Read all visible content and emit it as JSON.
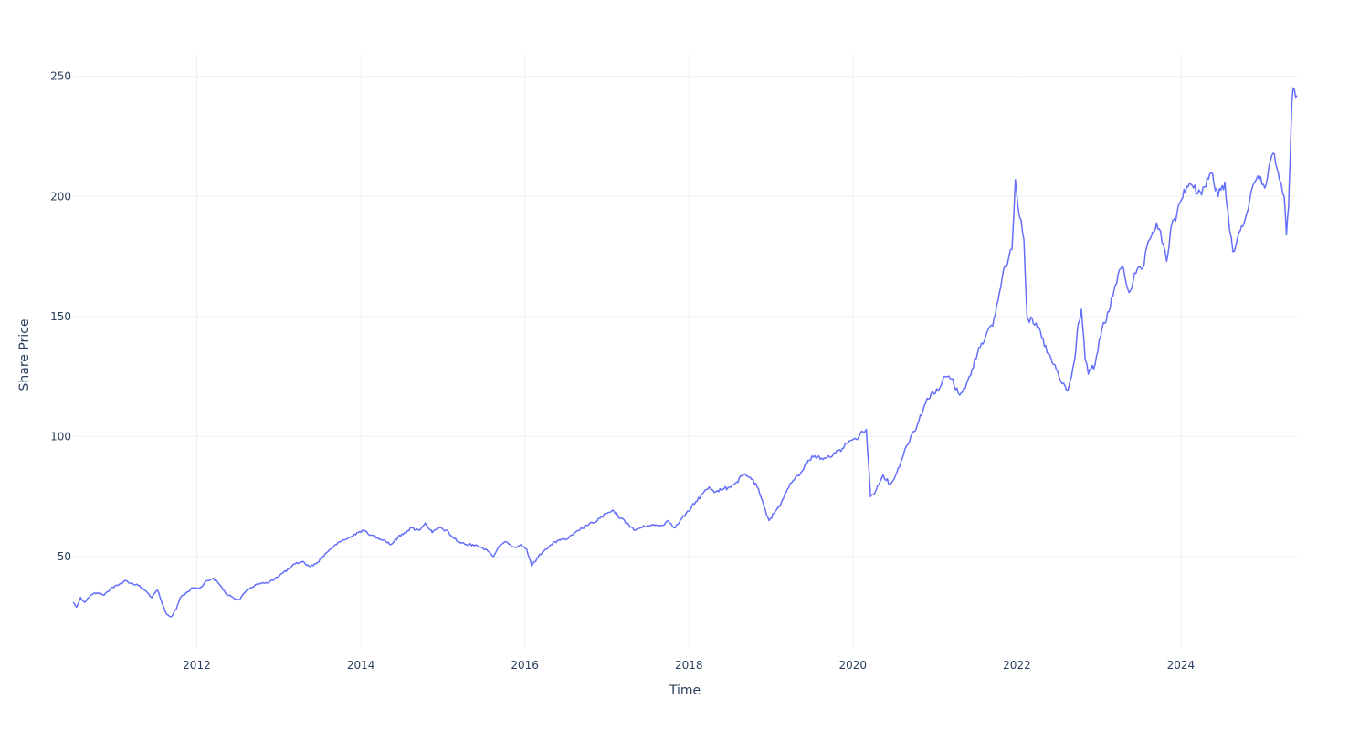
{
  "colors": {
    "series": "#636efa",
    "grid": "#ebf0f8",
    "text": "#2a3f5f",
    "background": "#ffffff"
  },
  "chart_data": {
    "type": "line",
    "title": "",
    "xlabel": "Time",
    "ylabel": "Share Price",
    "grid": true,
    "legend": "none",
    "xlim": [
      "2010-06-29",
      "2025-06-01"
    ],
    "ylim": [
      12,
      259
    ],
    "x_ticks": [
      {
        "value": "2012-01-01",
        "label": "2012"
      },
      {
        "value": "2014-01-01",
        "label": "2014"
      },
      {
        "value": "2016-01-01",
        "label": "2016"
      },
      {
        "value": "2018-01-01",
        "label": "2018"
      },
      {
        "value": "2020-01-01",
        "label": "2020"
      },
      {
        "value": "2022-01-01",
        "label": "2022"
      },
      {
        "value": "2024-01-01",
        "label": "2024"
      }
    ],
    "y_ticks": [
      {
        "value": 50,
        "label": "50"
      },
      {
        "value": 100,
        "label": "100"
      },
      {
        "value": 150,
        "label": "150"
      },
      {
        "value": 200,
        "label": "200"
      },
      {
        "value": 250,
        "label": "250"
      }
    ],
    "series": [
      {
        "x": [
          "2010-06-29",
          "2010-07-15",
          "2010-08-01",
          "2010-08-20",
          "2010-09-15",
          "2010-10-15",
          "2010-11-15",
          "2010-12-15",
          "2011-01-15",
          "2011-02-15",
          "2011-03-15",
          "2011-04-15",
          "2011-05-15",
          "2011-06-15",
          "2011-07-10",
          "2011-08-01",
          "2011-08-20",
          "2011-09-10",
          "2011-10-01",
          "2011-10-20",
          "2011-11-15",
          "2011-12-15",
          "2012-01-15",
          "2012-02-15",
          "2012-03-15",
          "2012-04-15",
          "2012-05-15",
          "2012-06-10",
          "2012-07-10",
          "2012-08-10",
          "2012-09-15",
          "2012-10-15",
          "2012-11-15",
          "2012-12-15",
          "2013-01-15",
          "2013-02-15",
          "2013-03-15",
          "2013-04-15",
          "2013-05-15",
          "2013-06-15",
          "2013-07-15",
          "2013-08-15",
          "2013-09-15",
          "2013-10-15",
          "2013-11-15",
          "2013-12-15",
          "2014-01-15",
          "2014-02-15",
          "2014-03-15",
          "2014-04-15",
          "2014-05-15",
          "2014-06-15",
          "2014-07-15",
          "2014-08-15",
          "2014-09-15",
          "2014-10-15",
          "2014-11-15",
          "2014-12-15",
          "2015-01-15",
          "2015-02-15",
          "2015-03-15",
          "2015-04-15",
          "2015-05-15",
          "2015-06-15",
          "2015-07-15",
          "2015-08-15",
          "2015-09-15",
          "2015-10-15",
          "2015-11-15",
          "2015-12-15",
          "2016-01-10",
          "2016-02-01",
          "2016-03-01",
          "2016-04-01",
          "2016-05-01",
          "2016-06-01",
          "2016-07-01",
          "2016-08-01",
          "2016-09-01",
          "2016-10-01",
          "2016-11-01",
          "2016-12-01",
          "2017-01-01",
          "2017-02-01",
          "2017-03-01",
          "2017-04-01",
          "2017-05-01",
          "2017-06-01",
          "2017-07-01",
          "2017-08-01",
          "2017-09-01",
          "2017-10-01",
          "2017-11-01",
          "2017-12-01",
          "2018-01-01",
          "2018-02-01",
          "2018-03-01",
          "2018-04-01",
          "2018-05-01",
          "2018-06-01",
          "2018-07-01",
          "2018-08-01",
          "2018-09-01",
          "2018-10-01",
          "2018-11-01",
          "2018-12-01",
          "2018-12-24",
          "2019-01-15",
          "2019-02-15",
          "2019-03-15",
          "2019-04-15",
          "2019-05-15",
          "2019-06-15",
          "2019-07-15",
          "2019-08-15",
          "2019-09-15",
          "2019-10-15",
          "2019-11-15",
          "2019-12-15",
          "2020-01-15",
          "2020-02-15",
          "2020-03-01",
          "2020-03-20",
          "2020-04-15",
          "2020-05-15",
          "2020-06-15",
          "2020-07-15",
          "2020-08-15",
          "2020-09-15",
          "2020-10-15",
          "2020-11-15",
          "2020-12-15",
          "2021-01-15",
          "2021-02-15",
          "2021-03-15",
          "2021-04-15",
          "2021-05-15",
          "2021-06-15",
          "2021-07-15",
          "2021-08-15",
          "2021-09-15",
          "2021-10-15",
          "2021-11-01",
          "2021-11-20",
          "2021-12-10",
          "2021-12-25",
          "2022-01-05",
          "2022-01-20",
          "2022-02-01",
          "2022-02-15",
          "2022-03-15",
          "2022-04-15",
          "2022-05-15",
          "2022-06-15",
          "2022-06-25",
          "2022-07-15",
          "2022-08-15",
          "2022-09-01",
          "2022-09-15",
          "2022-10-01",
          "2022-10-15",
          "2022-11-01",
          "2022-11-15",
          "2022-12-15",
          "2023-01-15",
          "2023-02-15",
          "2023-03-15",
          "2023-04-15",
          "2023-05-15",
          "2023-06-15",
          "2023-07-15",
          "2023-08-15",
          "2023-09-15",
          "2023-10-15",
          "2023-10-30",
          "2023-11-15",
          "2023-12-15",
          "2024-01-15",
          "2024-02-15",
          "2024-03-15",
          "2024-04-15",
          "2024-05-15",
          "2024-06-15",
          "2024-07-15",
          "2024-08-05",
          "2024-08-20",
          "2024-09-15",
          "2024-10-15",
          "2024-11-15",
          "2024-12-15",
          "2025-01-15",
          "2025-02-15",
          "2025-03-15",
          "2025-04-05",
          "2025-04-15",
          "2025-04-25",
          "2025-05-01",
          "2025-05-10",
          "2025-05-20",
          "2025-06-01"
        ],
        "y": [
          31,
          29,
          33,
          31,
          34,
          35,
          34,
          37,
          38,
          40,
          39,
          38,
          36,
          33,
          36,
          30,
          26,
          25,
          28,
          33,
          35,
          37,
          37,
          40,
          41,
          38,
          34,
          33,
          32,
          36,
          38,
          39,
          39,
          41,
          43,
          45,
          47,
          48,
          46,
          47,
          50,
          53,
          55,
          57,
          58,
          60,
          61,
          59,
          58,
          57,
          55,
          58,
          60,
          62,
          61,
          64,
          60,
          62,
          61,
          58,
          56,
          55,
          55,
          54,
          53,
          50,
          55,
          56,
          54,
          55,
          53,
          46,
          50,
          53,
          55,
          57,
          57,
          59,
          61,
          63,
          64,
          66,
          68,
          69,
          66,
          64,
          61,
          62,
          63,
          63,
          63,
          65,
          62,
          66,
          69,
          73,
          76,
          79,
          77,
          78,
          79,
          81,
          84,
          83,
          79,
          71,
          65,
          68,
          72,
          78,
          82,
          85,
          90,
          92,
          91,
          92,
          93,
          95,
          98,
          99,
          102,
          103,
          75,
          78,
          84,
          80,
          85,
          93,
          100,
          105,
          113,
          118,
          119,
          125,
          124,
          118,
          120,
          128,
          137,
          142,
          146,
          160,
          169,
          172,
          178,
          207,
          196,
          190,
          182,
          150,
          147,
          144,
          135,
          130,
          128,
          123,
          119,
          125,
          132,
          147,
          153,
          132,
          126,
          130,
          145,
          152,
          163,
          171,
          160,
          168,
          170,
          182,
          189,
          180,
          173,
          185,
          193,
          203,
          205,
          201,
          204,
          210,
          200,
          206,
          186,
          177,
          185,
          191,
          204,
          207,
          205,
          218,
          207,
          200,
          184,
          196,
          213,
          240,
          245,
          242
        ]
      }
    ]
  }
}
